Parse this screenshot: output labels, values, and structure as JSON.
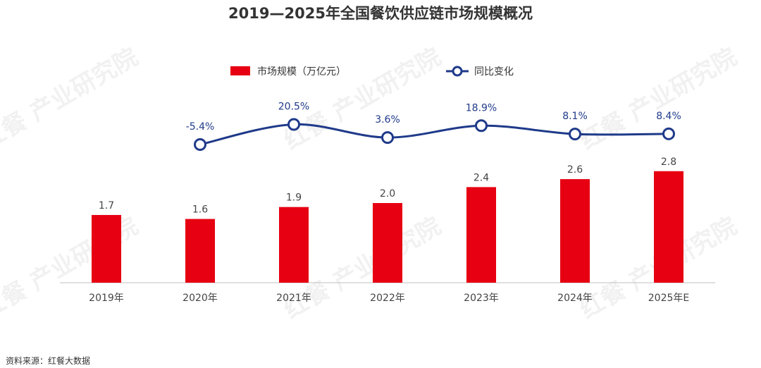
{
  "colors": {
    "bar": "#e60012",
    "line": "#1f3a8a",
    "axis": "#bfbfbf"
  },
  "chart_data": {
    "type": "bar",
    "title": "2019—2025年全国餐饮供应链市场规模概况",
    "categories": [
      "2019年",
      "2020年",
      "2021年",
      "2022年",
      "2023年",
      "2024年",
      "2025年E"
    ],
    "series": [
      {
        "name": "市场规模（万亿元）",
        "type": "bar",
        "values": [
          1.7,
          1.6,
          1.9,
          2.0,
          2.4,
          2.6,
          2.8
        ],
        "labels": [
          "1.7",
          "1.6",
          "1.9",
          "2.0",
          "2.4",
          "2.6",
          "2.8"
        ]
      },
      {
        "name": "同比变化",
        "type": "line",
        "values": [
          null,
          -5.4,
          20.5,
          3.6,
          18.9,
          8.1,
          8.4
        ],
        "labels": [
          "",
          "-5.4%",
          "20.5%",
          "3.6%",
          "18.9%",
          "8.1%",
          "8.4%"
        ]
      }
    ],
    "legend_position": "top",
    "grid": false
  },
  "source": "资料来源：红餐大数据",
  "watermark": "红餐 产业研究院"
}
